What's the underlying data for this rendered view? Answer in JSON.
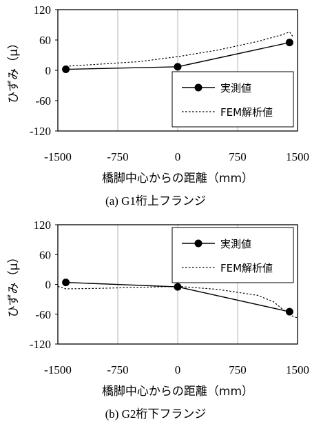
{
  "chart_data": [
    {
      "type": "line",
      "caption": "(a) G1桁上フランジ",
      "xlabel": "橋脚中心からの距離（mm）",
      "ylabel": "ひずみ（μ）",
      "xlim": [
        -1500,
        1500
      ],
      "ylim": [
        -120,
        120
      ],
      "xticks": [
        "-1500",
        "-750",
        "0",
        "750",
        "1500"
      ],
      "yticks": [
        "120",
        "60",
        "0",
        "-60",
        "-120"
      ],
      "grid": "vertical",
      "legend_position": "bottom-right",
      "series": [
        {
          "name": "実測値",
          "style": "solid-marker",
          "x": [
            -1400,
            0,
            1400
          ],
          "y": [
            2,
            7,
            55
          ]
        },
        {
          "name": "FEM解析値",
          "style": "dotted",
          "x": [
            -1400,
            -1000,
            -500,
            0,
            500,
            1000,
            1300,
            1400,
            1450
          ],
          "y": [
            8,
            12,
            17,
            27,
            40,
            57,
            70,
            76,
            65
          ]
        }
      ]
    },
    {
      "type": "line",
      "caption": "(b) G2桁下フランジ",
      "xlabel": "橋脚中心からの距離（mm）",
      "ylabel": "ひずみ（μ）",
      "xlim": [
        -1500,
        1500
      ],
      "ylim": [
        -120,
        120
      ],
      "xticks": [
        "-1500",
        "-750",
        "0",
        "750",
        "1500"
      ],
      "yticks": [
        "120",
        "60",
        "0",
        "-60",
        "-120"
      ],
      "grid": "vertical",
      "legend_position": "top-right",
      "series": [
        {
          "name": "実測値",
          "style": "solid-marker",
          "x": [
            -1400,
            0,
            1400
          ],
          "y": [
            4,
            -5,
            -55
          ]
        },
        {
          "name": "FEM解析値",
          "style": "dotted",
          "x": [
            -1500,
            -1400,
            -1000,
            -500,
            0,
            500,
            1000,
            1200,
            1350,
            1450,
            1500
          ],
          "y": [
            -4,
            -9,
            -8,
            -6,
            -4,
            -10,
            -22,
            -35,
            -55,
            -65,
            -67
          ]
        }
      ]
    }
  ]
}
